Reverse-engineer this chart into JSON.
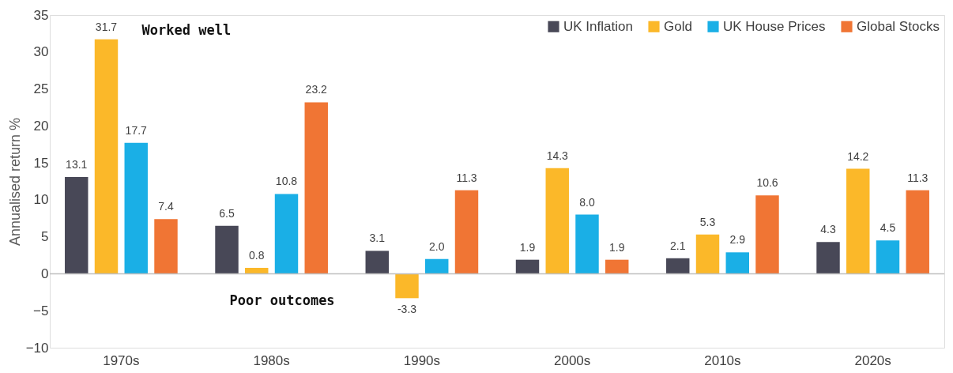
{
  "chart_data": {
    "type": "bar",
    "ylabel": "Annualised return %",
    "categories": [
      "1970s",
      "1980s",
      "1990s",
      "2000s",
      "2010s",
      "2020s"
    ],
    "series": [
      {
        "name": "UK Inflation",
        "color": "#484857",
        "values": [
          13.1,
          6.5,
          3.1,
          1.9,
          2.1,
          4.3
        ],
        "value_labels": [
          "13.1",
          "6.5",
          "3.1",
          "1.9",
          "2.1",
          "4.3"
        ]
      },
      {
        "name": "Gold",
        "color": "#fbb829",
        "values": [
          31.7,
          0.8,
          -3.3,
          14.3,
          5.3,
          14.2
        ],
        "value_labels": [
          "31.7",
          "0.8",
          "-3.3",
          "14.3",
          "5.3",
          "14.2"
        ]
      },
      {
        "name": "UK House Prices",
        "color": "#1aafe6",
        "values": [
          17.7,
          10.8,
          2.0,
          8.0,
          2.9,
          4.5
        ],
        "value_labels": [
          "17.7",
          "10.8",
          "2.0",
          "8.0",
          "2.9",
          "4.5"
        ]
      },
      {
        "name": "Global Stocks",
        "color": "#f07534",
        "values": [
          7.4,
          23.2,
          11.3,
          1.9,
          10.6,
          11.3
        ],
        "value_labels": [
          "7.4",
          "23.2",
          "11.3",
          "1.9",
          "10.6",
          "11.3"
        ]
      }
    ],
    "ylim": [
      -10,
      35
    ],
    "yticks": [
      -10,
      -5,
      0,
      5,
      10,
      15,
      20,
      25,
      30,
      35
    ],
    "grid": false,
    "legend": "top right",
    "ref_lines": [
      {
        "axis": "y",
        "value": 0,
        "color": "#bfbfbf"
      }
    ],
    "annotations": [
      "Worked well",
      "Poor outcomes"
    ]
  }
}
